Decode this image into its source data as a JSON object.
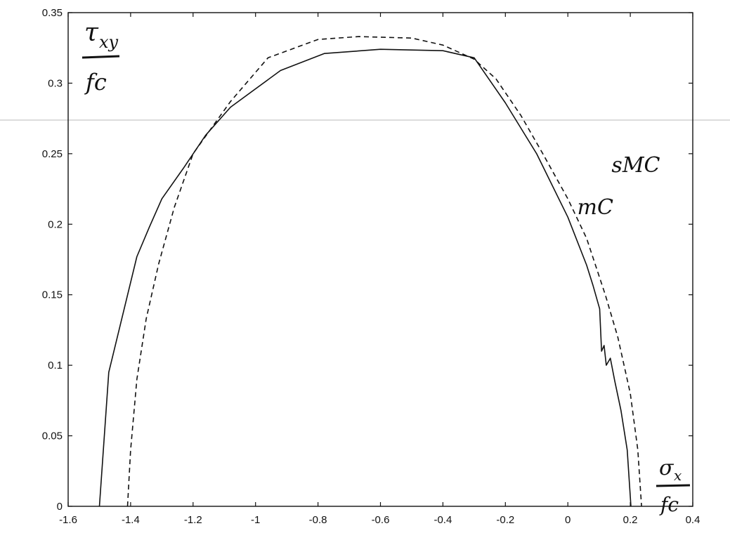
{
  "chart_data": {
    "type": "line",
    "title": "",
    "ylabel": {
      "main": "τ",
      "sub": "xy",
      "den": "fc"
    },
    "xlabel": {
      "main": "σ",
      "sub": "x",
      "den": "fc"
    },
    "xlim": [
      -1.6,
      0.4
    ],
    "ylim": [
      0,
      0.35
    ],
    "xticks": [
      "-1.6",
      "-1.4",
      "-1.2",
      "-1",
      "-0.8",
      "-0.6",
      "-0.4",
      "-0.2",
      "0",
      "0.2",
      "0.4"
    ],
    "yticks": [
      "0",
      "0.05",
      "0.1",
      "0.15",
      "0.2",
      "0.25",
      "0.3",
      "0.35"
    ],
    "xtick_values": [
      -1.6,
      -1.4,
      -1.2,
      -1.0,
      -0.8,
      -0.6,
      -0.4,
      -0.2,
      0.0,
      0.2,
      0.4
    ],
    "ytick_values": [
      0,
      0.05,
      0.1,
      0.15,
      0.2,
      0.25,
      0.3,
      0.35
    ],
    "grid": false,
    "series": [
      {
        "name": "mC",
        "style": "solid",
        "color": "#111111",
        "points": [
          [
            -1.5,
            0.0
          ],
          [
            -1.47,
            0.095
          ],
          [
            -1.38,
            0.177
          ],
          [
            -1.34,
            0.198
          ],
          [
            -1.3,
            0.218
          ],
          [
            -1.23,
            0.24
          ],
          [
            -1.16,
            0.263
          ],
          [
            -1.08,
            0.283
          ],
          [
            -0.92,
            0.309
          ],
          [
            -0.78,
            0.321
          ],
          [
            -0.6,
            0.324
          ],
          [
            -0.4,
            0.323
          ],
          [
            -0.3,
            0.318
          ],
          [
            -0.2,
            0.286
          ],
          [
            -0.1,
            0.25
          ],
          [
            0.0,
            0.205
          ],
          [
            0.06,
            0.171
          ],
          [
            0.08,
            0.157
          ],
          [
            0.102,
            0.14
          ],
          [
            0.108,
            0.11
          ],
          [
            0.116,
            0.114
          ],
          [
            0.123,
            0.1
          ],
          [
            0.136,
            0.105
          ],
          [
            0.15,
            0.089
          ],
          [
            0.17,
            0.068
          ],
          [
            0.19,
            0.04
          ],
          [
            0.202,
            0.0
          ]
        ]
      },
      {
        "name": "sMC",
        "style": "dashed",
        "color": "#111111",
        "points": [
          [
            -1.41,
            0.0
          ],
          [
            -1.4,
            0.04
          ],
          [
            -1.38,
            0.09
          ],
          [
            -1.35,
            0.133
          ],
          [
            -1.31,
            0.172
          ],
          [
            -1.26,
            0.212
          ],
          [
            -1.2,
            0.25
          ],
          [
            -1.08,
            0.287
          ],
          [
            -0.96,
            0.318
          ],
          [
            -0.8,
            0.331
          ],
          [
            -0.67,
            0.333
          ],
          [
            -0.5,
            0.332
          ],
          [
            -0.4,
            0.327
          ],
          [
            -0.3,
            0.317
          ],
          [
            -0.23,
            0.303
          ],
          [
            -0.15,
            0.277
          ],
          [
            -0.08,
            0.25
          ],
          [
            0.0,
            0.218
          ],
          [
            0.06,
            0.19
          ],
          [
            0.12,
            0.15
          ],
          [
            0.16,
            0.12
          ],
          [
            0.2,
            0.08
          ],
          [
            0.224,
            0.04
          ],
          [
            0.236,
            0.0
          ]
        ]
      }
    ],
    "annotations": [
      {
        "text": "sMC",
        "x": 0.14,
        "y": 0.237
      },
      {
        "text": "mC",
        "x": 0.03,
        "y": 0.207
      }
    ]
  }
}
